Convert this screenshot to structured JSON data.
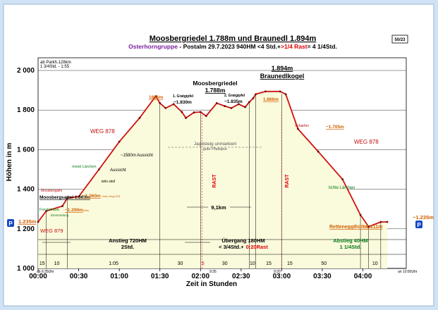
{
  "header": {
    "title": "Moosbergriedel 1.788m und Braunedl 1.894m",
    "sub_group": "Osterhorngruppe",
    "sub_rest": " - Postalm   29.7.2023     940HM  <4 Std.+",
    "sub_rast": ">1/4 Rast",
    "sub_end": "= 4 1/4Std.",
    "page_no": "50/23"
  },
  "chart_data": {
    "type": "area",
    "xlabel": "Zeit in Stunden",
    "ylabel": "Höhen in m",
    "xlim": [
      0,
      4.5
    ],
    "ylim": [
      1000,
      2000
    ],
    "x_ticks": [
      "00:00",
      "00:30",
      "01:00",
      "01:30",
      "02:00",
      "02:30",
      "03:00",
      "03:30",
      "04:00"
    ],
    "y_ticks": [
      "1 000",
      "1 200",
      "1 400",
      "1 600",
      "1 800",
      "2 000"
    ],
    "series": [
      {
        "x": [
          0,
          0.1,
          0.3,
          0.36,
          0.5,
          0.75,
          1.0,
          1.25,
          1.45,
          1.5,
          1.57,
          1.67,
          1.77,
          1.82,
          1.92,
          2.0,
          2.07,
          2.2,
          2.3,
          2.38,
          2.47,
          2.55,
          2.6,
          2.65,
          2.68,
          2.8,
          2.98,
          3.05,
          3.2,
          3.45,
          3.75,
          3.97,
          4.07,
          4.22,
          4.3
        ],
        "y": [
          1235,
          1290,
          1315,
          1355,
          1363,
          1500,
          1640,
          1760,
          1870,
          1835,
          1810,
          1830,
          1790,
          1760,
          1788,
          1790,
          1770,
          1835,
          1820,
          1810,
          1830,
          1815,
          1840,
          1860,
          1880,
          1894,
          1894,
          1880,
          1705,
          1590,
          1450,
          1270,
          1211,
          1235,
          1235
        ]
      }
    ]
  },
  "info": {
    "top_left_1": "ab Parkh.128km",
    "top_left_2": "1 3/4Std. - 1:55",
    "wood_left": "WEG 878",
    "wood_right": "WEG 878",
    "aussicht_1580": "~1580m Aussicht",
    "aussicht": "Aussicht",
    "teils_steil": "teils steil",
    "meist_larchen": "meist Lärchen",
    "lichte_larchen": "lichte Lärchen",
    "moosbergalm": "Moosbergalm",
    "moosbergsattel": "Moosbergsattel 1.363m",
    "forststrasse": "Forststraße",
    "einmuendung": "Einmündung",
    "weg879": "WEG 879",
    "start_height": "1.235m",
    "end_height": "~1.235m",
    "h1290": "~1.290m",
    "h1290_note": "links",
    "h1360": "~1.360m",
    "h1360_note": "links Weg 878",
    "h1866": "1866m",
    "g1_label": "1. Gratgipfel",
    "g1_height": "~1.830m",
    "g2_label": "2. Gratgipfel",
    "g2_height": "~1.835m",
    "moosberg_name": "Moosbergriedel",
    "moosberg_height": "1.788m",
    "braunedl_height": "1.894m",
    "braunedl_name": "Braunedlkogel",
    "h1866b": "1.866m",
    "h1705": "~1.705m",
    "scharfen": "Scharfen",
    "jagdsteig": "Jagdsteig unmarkiert",
    "pfadspur": "gute Pfadspur",
    "distance": "9,1km",
    "rast_label": "RAST",
    "rettenegg": "Retteneggthütte",
    "rettenegg_h": "1.211m",
    "seg_up_1": "Anstieg 720HM",
    "seg_up_2": "2Std.",
    "seg_mid_1": "Übergang 180HM",
    "seg_mid_2": "< 3/4Std.+",
    "seg_mid_rast": "0:20Rast",
    "seg_down_1": "Abstieg 40HM",
    "seg_down_2": "1 1/4Std.",
    "seg_min": [
      "15",
      "10",
      "1:05",
      "30",
      "5",
      "30",
      "10",
      "15",
      "15",
      "50",
      "10"
    ],
    "t_start": "ab 6:35Uhr",
    "t_end": "an 10:50Uhr",
    "t_935": "9:35",
    "t_920": "9:20",
    "parking": "P"
  }
}
